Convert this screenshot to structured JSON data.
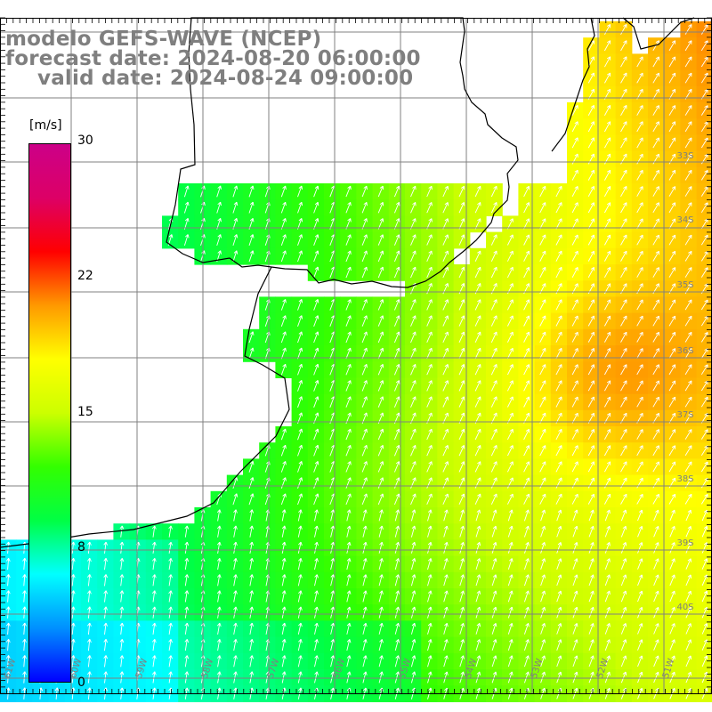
{
  "title": {
    "line1": "modelo GEFS-WAVE (NCEP)",
    "line2": "forecast date: 2024-08-20 06:00:00",
    "line3": "valid date: 2024-08-24 09:00:00"
  },
  "colorbar": {
    "unit": "[m/s]",
    "ticks": [
      "30",
      "22",
      "15",
      "8",
      "0"
    ],
    "min": 0,
    "max": 30,
    "colors": [
      "#0000ff",
      "#0090ff",
      "#00ffff",
      "#00ff44",
      "#33ff00",
      "#ccff00",
      "#ffff00",
      "#ff9900",
      "#ff0000",
      "#dd0066",
      "#cc0088"
    ]
  },
  "map": {
    "lat_labels": [
      "33S",
      "34S",
      "35S",
      "36S",
      "37S",
      "38S",
      "39S",
      "40S"
    ],
    "lon_labels": [
      "61W",
      "60W",
      "59W",
      "58W",
      "57W",
      "56W",
      "55W",
      "54W",
      "53W",
      "52W",
      "51W"
    ],
    "land_color": "#ffffff",
    "grid_color": "#808080",
    "arrow_color": "#ffffff"
  },
  "chart_data": {
    "type": "heatmap",
    "variable": "wind speed",
    "unit": "m/s",
    "colorbar_range": [
      0,
      30
    ],
    "colorbar_ticks": [
      0,
      8,
      15,
      22,
      30
    ],
    "lon_range": [
      -61.5,
      -50.5
    ],
    "lat_range": [
      -41.5,
      -31.5
    ],
    "field_description": "values increase from ~8-10 m/s in the south-west to ~14-16 m/s in the north-east; wind directed toward the north-east"
  }
}
